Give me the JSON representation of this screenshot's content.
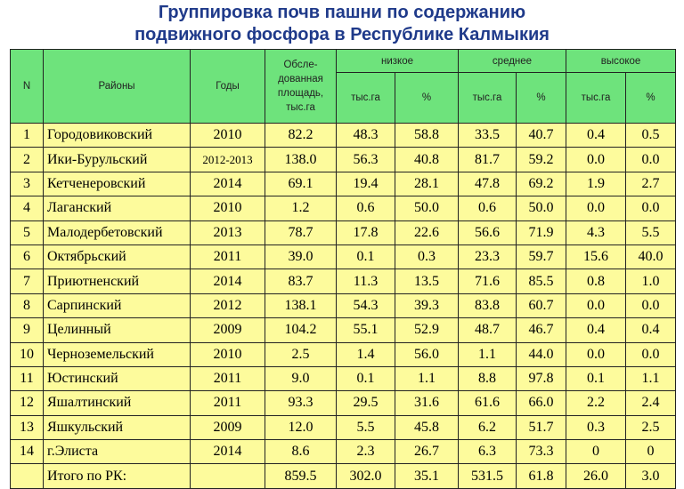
{
  "title": {
    "line1": "Группировка почв пашни по содержанию",
    "line2": "подвижного фосфора в Республике Калмыкия"
  },
  "header": {
    "n": "N",
    "district": "Районы",
    "years": "Годы",
    "area_line1": "Обсле-",
    "area_line2": "дованная",
    "area_line3": "площадь,",
    "area_line4": "тыс.га",
    "low": "низкое",
    "medium": "среднее",
    "high": "высокое",
    "unit_tha": "тыс.га",
    "unit_pct": "%"
  },
  "rows": [
    {
      "n": "1",
      "district": "Городовиковский",
      "years": "2010",
      "area": "82.2",
      "low_tha": "48.3",
      "low_pct": "58.8",
      "med_tha": "33.5",
      "med_pct": "40.7",
      "high_tha": "0.4",
      "high_pct": "0.5"
    },
    {
      "n": "2",
      "district": "Ики-Бурульский",
      "years": "2012-2013",
      "area": "138.0",
      "low_tha": "56.3",
      "low_pct": "40.8",
      "med_tha": "81.7",
      "med_pct": "59.2",
      "high_tha": "0.0",
      "high_pct": "0.0"
    },
    {
      "n": "3",
      "district": "Кетченеровский",
      "years": "2014",
      "area": "69.1",
      "low_tha": "19.4",
      "low_pct": "28.1",
      "med_tha": "47.8",
      "med_pct": "69.2",
      "high_tha": "1.9",
      "high_pct": "2.7"
    },
    {
      "n": "4",
      "district": "Лаганский",
      "years": "2010",
      "area": "1.2",
      "low_tha": "0.6",
      "low_pct": "50.0",
      "med_tha": "0.6",
      "med_pct": "50.0",
      "high_tha": "0.0",
      "high_pct": "0.0"
    },
    {
      "n": "5",
      "district": "Малодербетовский",
      "years": "2013",
      "area": "78.7",
      "low_tha": "17.8",
      "low_pct": "22.6",
      "med_tha": "56.6",
      "med_pct": "71.9",
      "high_tha": "4.3",
      "high_pct": "5.5"
    },
    {
      "n": "6",
      "district": "Октябрьский",
      "years": "2011",
      "area": "39.0",
      "low_tha": "0.1",
      "low_pct": "0.3",
      "med_tha": "23.3",
      "med_pct": "59.7",
      "high_tha": "15.6",
      "high_pct": "40.0"
    },
    {
      "n": "7",
      "district": "Приютненский",
      "years": "2014",
      "area": "83.7",
      "low_tha": "11.3",
      "low_pct": "13.5",
      "med_tha": "71.6",
      "med_pct": "85.5",
      "high_tha": "0.8",
      "high_pct": "1.0"
    },
    {
      "n": "8",
      "district": "Сарпинский",
      "years": "2012",
      "area": "138.1",
      "low_tha": "54.3",
      "low_pct": "39.3",
      "med_tha": "83.8",
      "med_pct": "60.7",
      "high_tha": "0.0",
      "high_pct": "0.0"
    },
    {
      "n": "9",
      "district": "Целинный",
      "years": "2009",
      "area": "104.2",
      "low_tha": "55.1",
      "low_pct": "52.9",
      "med_tha": "48.7",
      "med_pct": "46.7",
      "high_tha": "0.4",
      "high_pct": "0.4"
    },
    {
      "n": "10",
      "district": "Черноземельский",
      "years": "2010",
      "area": "2.5",
      "low_tha": "1.4",
      "low_pct": "56.0",
      "med_tha": "1.1",
      "med_pct": "44.0",
      "high_tha": "0.0",
      "high_pct": "0.0"
    },
    {
      "n": "11",
      "district": "Юстинский",
      "years": "2011",
      "area": "9.0",
      "low_tha": "0.1",
      "low_pct": "1.1",
      "med_tha": "8.8",
      "med_pct": "97.8",
      "high_tha": "0.1",
      "high_pct": "1.1"
    },
    {
      "n": "12",
      "district": "Яшалтинский",
      "years": "2011",
      "area": "93.3",
      "low_tha": "29.5",
      "low_pct": "31.6",
      "med_tha": "61.6",
      "med_pct": "66.0",
      "high_tha": "2.2",
      "high_pct": "2.4"
    },
    {
      "n": "13",
      "district": "Яшкульский",
      "years": "2009",
      "area": "12.0",
      "low_tha": "5.5",
      "low_pct": "45.8",
      "med_tha": "6.2",
      "med_pct": "51.7",
      "high_tha": "0.3",
      "high_pct": "2.5"
    },
    {
      "n": "14",
      "district": "г.Элиста",
      "years": "2014",
      "area": "8.6",
      "low_tha": "2.3",
      "low_pct": "26.7",
      "med_tha": "6.3",
      "med_pct": "73.3",
      "high_tha": "0",
      "high_pct": "0"
    }
  ],
  "total": {
    "label": "Итого по РК:",
    "area": "859.5",
    "low_tha": "302.0",
    "low_pct": "35.1",
    "med_tha": "531.5",
    "med_pct": "61.8",
    "high_tha": "26.0",
    "high_pct": "3.0"
  },
  "colors": {
    "header_bg": "#6ee37c",
    "body_bg": "#fdfb9c",
    "title_color": "#1f3a8a"
  }
}
